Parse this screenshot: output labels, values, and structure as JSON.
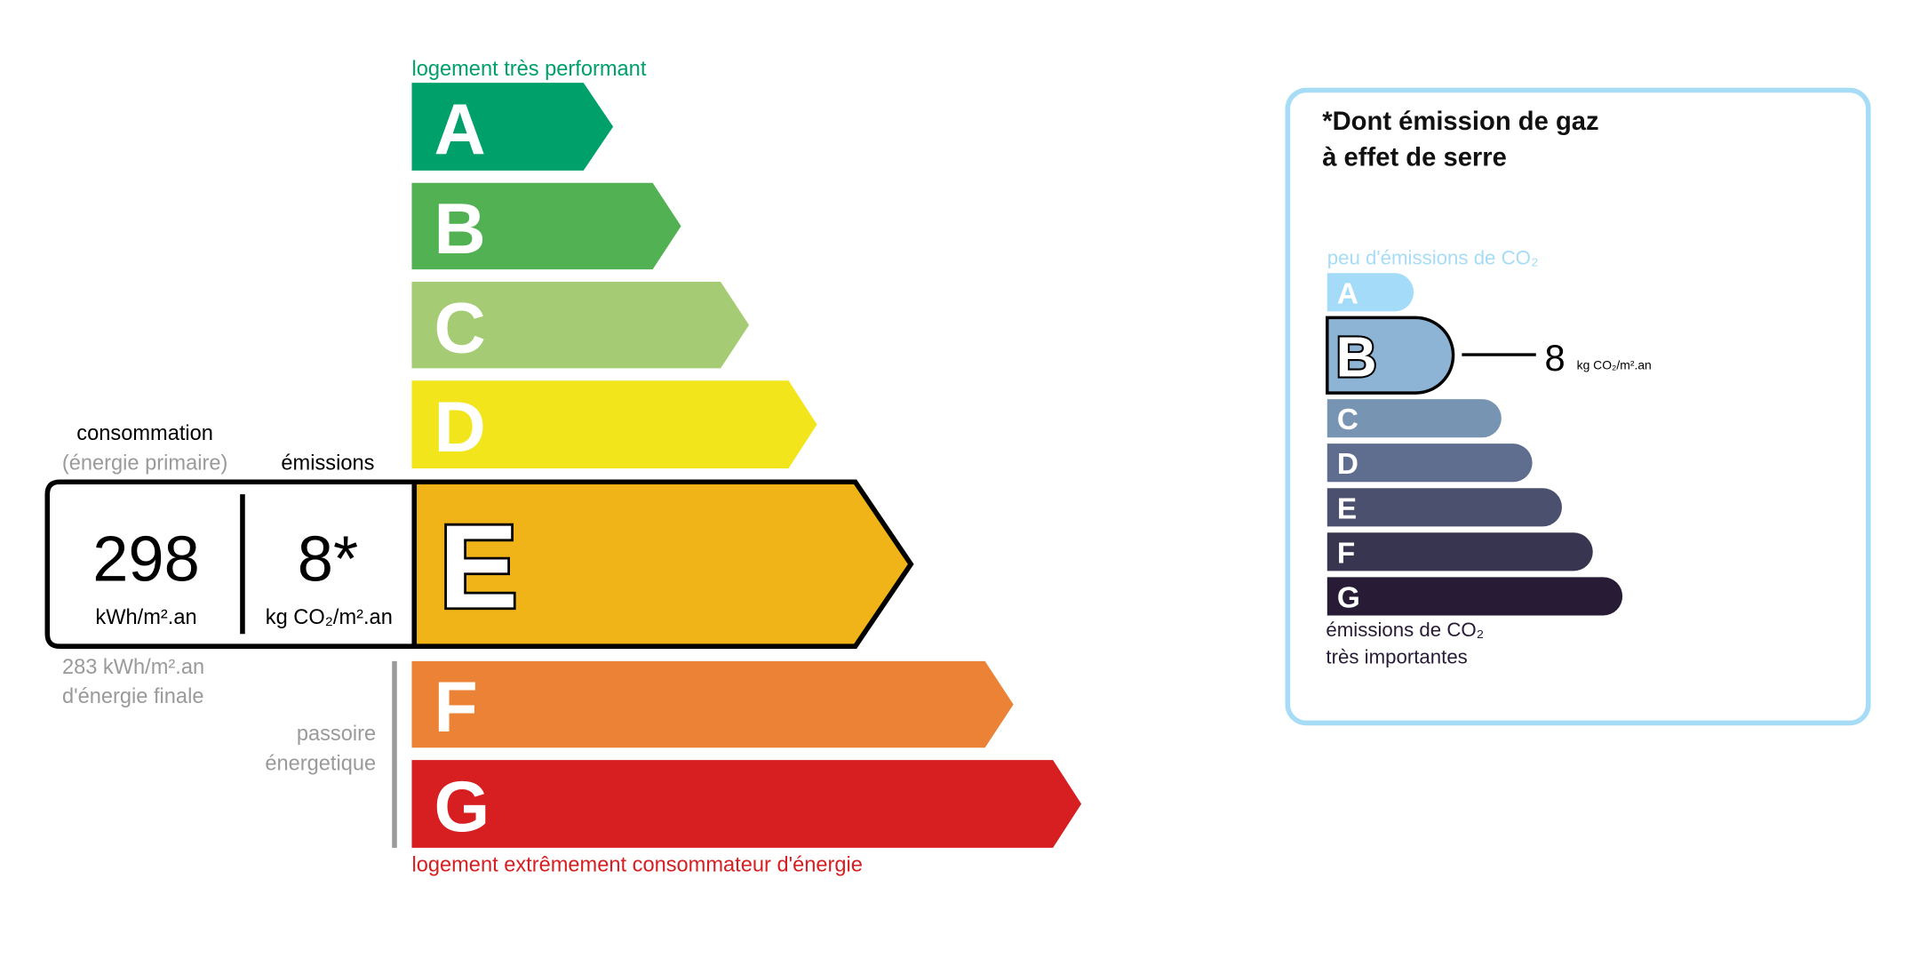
{
  "energy": {
    "top_label": "logement très performant",
    "bottom_label": "logement extrêmement consommateur d'énergie",
    "classes": [
      {
        "letter": "A",
        "color": "#00a06a"
      },
      {
        "letter": "B",
        "color": "#52b153"
      },
      {
        "letter": "C",
        "color": "#a5cc74"
      },
      {
        "letter": "D",
        "color": "#f2e51b"
      },
      {
        "letter": "E",
        "color": "#f0b419"
      },
      {
        "letter": "F",
        "color": "#eb8235"
      },
      {
        "letter": "G",
        "color": "#d71e21"
      }
    ],
    "current_class": "E",
    "consumption_label": "consommation",
    "consumption_sublabel": "(énergie primaire)",
    "emissions_label": "émissions",
    "consumption_value": "298",
    "consumption_unit": "kWh/m².an",
    "emissions_value": "8*",
    "emissions_unit": "kg CO₂/m².an",
    "final_energy_line1": "283 kWh/m².an",
    "final_energy_line2": "d'énergie finale",
    "passoire_line1": "passoire",
    "passoire_line2": "énergetique"
  },
  "ges": {
    "title_line1": "*Dont émission de gaz",
    "title_line2": "à effet de serre",
    "top_label": "peu d'émissions de CO₂",
    "bottom_label_line1": "émissions de CO₂",
    "bottom_label_line2": "très importantes",
    "classes": [
      {
        "letter": "A",
        "color": "#a4dbf8"
      },
      {
        "letter": "B",
        "color": "#8db3d5"
      },
      {
        "letter": "C",
        "color": "#7794b2"
      },
      {
        "letter": "D",
        "color": "#5f6e8f"
      },
      {
        "letter": "E",
        "color": "#4b506f"
      },
      {
        "letter": "F",
        "color": "#383550"
      },
      {
        "letter": "G",
        "color": "#281b35"
      }
    ],
    "current_class": "B",
    "value": "8",
    "unit": "kg CO₂/m².an",
    "border_color": "#a6dcf5"
  }
}
